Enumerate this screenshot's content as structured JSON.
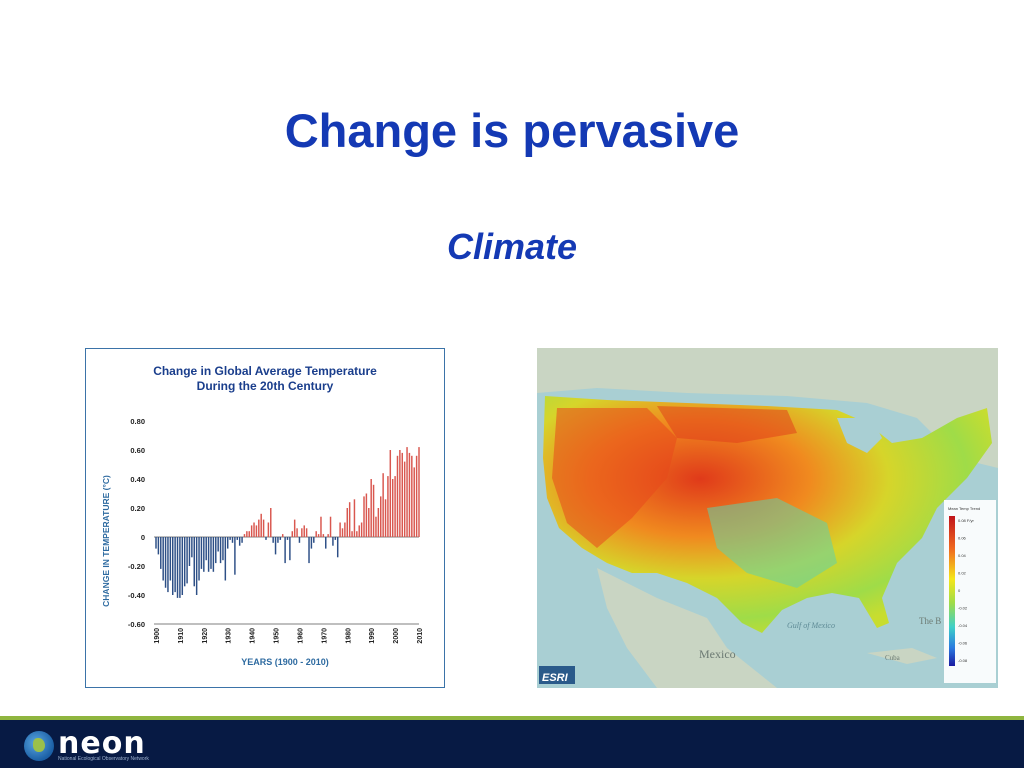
{
  "slide": {
    "title": "Change is pervasive",
    "subtitle": "Climate"
  },
  "chart_data": {
    "type": "bar",
    "title": "Change in Global Average Temperature During the 20th Century",
    "title_lines": [
      "Change in Global Average Temperature",
      "During the 20th Century"
    ],
    "xlabel": "YEARS (1900 - 2010)",
    "ylabel": "CHANGE IN TEMPERATURE (°C)",
    "ylim": [
      -0.6,
      0.8
    ],
    "yticks": [
      "0.80",
      "0.60",
      "0.40",
      "0.20",
      "0",
      "-0.20",
      "-0.40",
      "-0.60"
    ],
    "ytick_values": [
      0.8,
      0.6,
      0.4,
      0.2,
      0,
      -0.2,
      -0.4,
      -0.6
    ],
    "xticks": [
      "1900",
      "1910",
      "1920",
      "1930",
      "1940",
      "1950",
      "1960",
      "1970",
      "1980",
      "1990",
      "2000",
      "2010"
    ],
    "x_start": 1900,
    "x_end": 2010,
    "positive_color": "#d9574f",
    "negative_color": "#2d4f86",
    "years": [
      1900,
      1901,
      1902,
      1903,
      1904,
      1905,
      1906,
      1907,
      1908,
      1909,
      1910,
      1911,
      1912,
      1913,
      1914,
      1915,
      1916,
      1917,
      1918,
      1919,
      1920,
      1921,
      1922,
      1923,
      1924,
      1925,
      1926,
      1927,
      1928,
      1929,
      1930,
      1931,
      1932,
      1933,
      1934,
      1935,
      1936,
      1937,
      1938,
      1939,
      1940,
      1941,
      1942,
      1943,
      1944,
      1945,
      1946,
      1947,
      1948,
      1949,
      1950,
      1951,
      1952,
      1953,
      1954,
      1955,
      1956,
      1957,
      1958,
      1959,
      1960,
      1961,
      1962,
      1963,
      1964,
      1965,
      1966,
      1967,
      1968,
      1969,
      1970,
      1971,
      1972,
      1973,
      1974,
      1975,
      1976,
      1977,
      1978,
      1979,
      1980,
      1981,
      1982,
      1983,
      1984,
      1985,
      1986,
      1987,
      1988,
      1989,
      1990,
      1991,
      1992,
      1993,
      1994,
      1995,
      1996,
      1997,
      1998,
      1999,
      2000,
      2001,
      2002,
      2003,
      2004,
      2005,
      2006,
      2007,
      2008,
      2009,
      2010
    ],
    "values": [
      -0.08,
      -0.12,
      -0.22,
      -0.3,
      -0.35,
      -0.38,
      -0.3,
      -0.4,
      -0.38,
      -0.42,
      -0.42,
      -0.4,
      -0.34,
      -0.32,
      -0.2,
      -0.14,
      -0.34,
      -0.4,
      -0.3,
      -0.22,
      -0.24,
      -0.16,
      -0.24,
      -0.22,
      -0.24,
      -0.18,
      -0.1,
      -0.18,
      -0.16,
      -0.3,
      -0.08,
      -0.02,
      -0.04,
      -0.26,
      -0.02,
      -0.06,
      -0.04,
      0.02,
      0.04,
      0.04,
      0.08,
      0.1,
      0.08,
      0.12,
      0.16,
      0.12,
      -0.02,
      0.1,
      0.2,
      -0.04,
      -0.12,
      -0.04,
      -0.02,
      0.02,
      -0.18,
      -0.02,
      -0.16,
      0.04,
      0.12,
      0.06,
      -0.04,
      0.06,
      0.08,
      0.06,
      -0.18,
      -0.08,
      -0.04,
      0.04,
      0.02,
      0.14,
      0.02,
      -0.08,
      0.02,
      0.14,
      -0.06,
      -0.02,
      -0.14,
      0.1,
      0.06,
      0.1,
      0.2,
      0.24,
      0.04,
      0.26,
      0.04,
      0.08,
      0.1,
      0.28,
      0.3,
      0.2,
      0.4,
      0.36,
      0.14,
      0.2,
      0.28,
      0.44,
      0.26,
      0.42,
      0.6,
      0.4,
      0.42,
      0.56,
      0.6,
      0.58,
      0.52,
      0.62,
      0.58,
      0.56,
      0.48,
      0.56,
      0.62
    ]
  },
  "map": {
    "legend_title": "Mean Temp Trend",
    "legend_labels": [
      "0.08 F/yr",
      "0.06",
      "0.04",
      "0.02",
      "0",
      "-0.02",
      "-0.04",
      "-0.06",
      "-0.08"
    ],
    "labels": [
      "Gulf of Mexico",
      "Mexico",
      "Cuba",
      "The B"
    ],
    "esri_label": "ESRI",
    "colors": {
      "hot": "#d81e1e",
      "warm": "#f06a1f",
      "mild": "#f5c21a",
      "neutral": "#c8dd2f",
      "cool": "#5fd26a",
      "cold": "#3fb6d2",
      "water": "#9fc7cc",
      "land": "#c7d3c1"
    }
  },
  "footer": {
    "logo_text": "neon",
    "logo_tagline": "National Ecological Observatory Network",
    "bg_color": "#071a44",
    "accent_color": "#8fb53f"
  }
}
